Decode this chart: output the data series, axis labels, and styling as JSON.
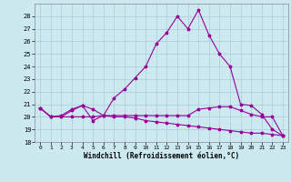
{
  "xlabel": "Windchill (Refroidissement éolien,°C)",
  "xlim": [
    -0.5,
    23.5
  ],
  "ylim": [
    18,
    29
  ],
  "yticks": [
    18,
    19,
    20,
    21,
    22,
    23,
    24,
    25,
    26,
    27,
    28
  ],
  "xticks": [
    0,
    1,
    2,
    3,
    4,
    5,
    6,
    7,
    8,
    9,
    10,
    11,
    12,
    13,
    14,
    15,
    16,
    17,
    18,
    19,
    20,
    21,
    22,
    23
  ],
  "bg_color": "#cce9f0",
  "grid_color": "#aaccd8",
  "line_color": "#990099",
  "line1_y": [
    20.7,
    20.0,
    20.0,
    20.5,
    20.9,
    19.7,
    20.1,
    21.5,
    22.2,
    23.1,
    24.0,
    25.8,
    26.7,
    28.0,
    27.0,
    28.5,
    26.5,
    25.0,
    24.0,
    21.0,
    20.9,
    20.2,
    19.0,
    18.5
  ],
  "line2_y": [
    20.7,
    20.0,
    20.1,
    20.6,
    20.9,
    20.6,
    20.1,
    20.1,
    20.1,
    20.1,
    20.1,
    20.1,
    20.1,
    20.1,
    20.1,
    20.6,
    20.7,
    20.8,
    20.8,
    20.5,
    20.2,
    20.0,
    20.0,
    18.5
  ],
  "line3_y": [
    20.7,
    20.0,
    20.0,
    20.0,
    20.0,
    20.0,
    20.1,
    20.0,
    20.0,
    19.9,
    19.7,
    19.6,
    19.5,
    19.4,
    19.3,
    19.2,
    19.1,
    19.0,
    18.9,
    18.8,
    18.7,
    18.7,
    18.6,
    18.5
  ]
}
